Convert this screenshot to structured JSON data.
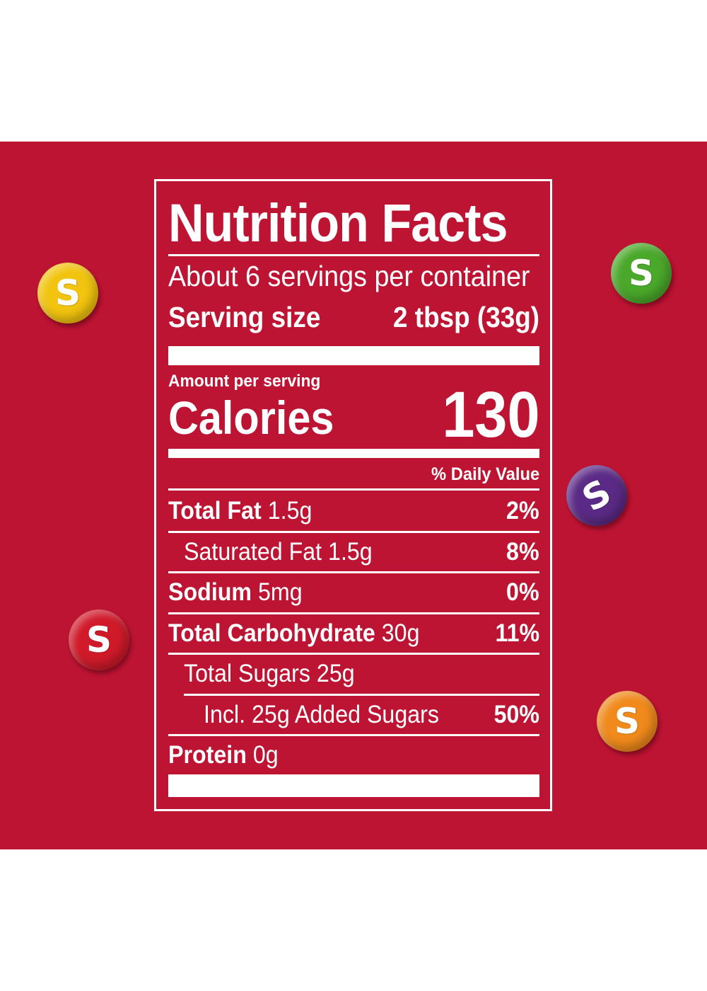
{
  "label": {
    "title": "Nutrition Facts",
    "servings_per_container": "About 6 servings per container",
    "serving_size_label": "Serving size",
    "serving_size_value": "2 tbsp (33g)",
    "amount_per_serving": "Amount per serving",
    "calories_label": "Calories",
    "calories_value": "130",
    "daily_value_header": "% Daily Value",
    "nutrients": [
      {
        "name": "Total Fat",
        "amount": "1.5g",
        "dv": "2%"
      },
      {
        "name": "Saturated Fat 1.5g",
        "amount": "",
        "dv": "8%"
      },
      {
        "name": "Sodium",
        "amount": "5mg",
        "dv": "0%"
      },
      {
        "name": "Total Carbohydrate",
        "amount": "30g",
        "dv": "11%"
      },
      {
        "name": "Total Sugars 25g",
        "amount": "",
        "dv": ""
      },
      {
        "name": "Incl. 25g Added Sugars",
        "amount": "",
        "dv": "50%"
      },
      {
        "name": "Protein",
        "amount": "0g",
        "dv": ""
      }
    ]
  },
  "candies": [
    {
      "name": "yellow-candy",
      "letter": "S",
      "color": "#f2c40f"
    },
    {
      "name": "green-candy",
      "letter": "S",
      "color": "#4aa82a"
    },
    {
      "name": "purple-candy",
      "letter": "S",
      "color": "#5b2a86"
    },
    {
      "name": "red-candy",
      "letter": "S",
      "color": "#d01a2a"
    },
    {
      "name": "orange-candy",
      "letter": "S",
      "color": "#f08a1c"
    }
  ],
  "colors": {
    "background_band": "#bd1433",
    "label_text": "#ffffff"
  }
}
